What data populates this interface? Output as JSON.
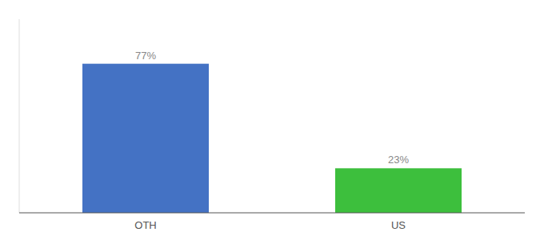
{
  "chart_data": {
    "type": "bar",
    "categories": [
      "OTH",
      "US"
    ],
    "values": [
      77,
      23
    ],
    "value_labels": [
      "77%",
      "23%"
    ],
    "colors": [
      "#4472c4",
      "#3dbf3d"
    ],
    "ylim": [
      0,
      100
    ],
    "data_labels": true,
    "tick_labels": "x",
    "grid": false
  }
}
